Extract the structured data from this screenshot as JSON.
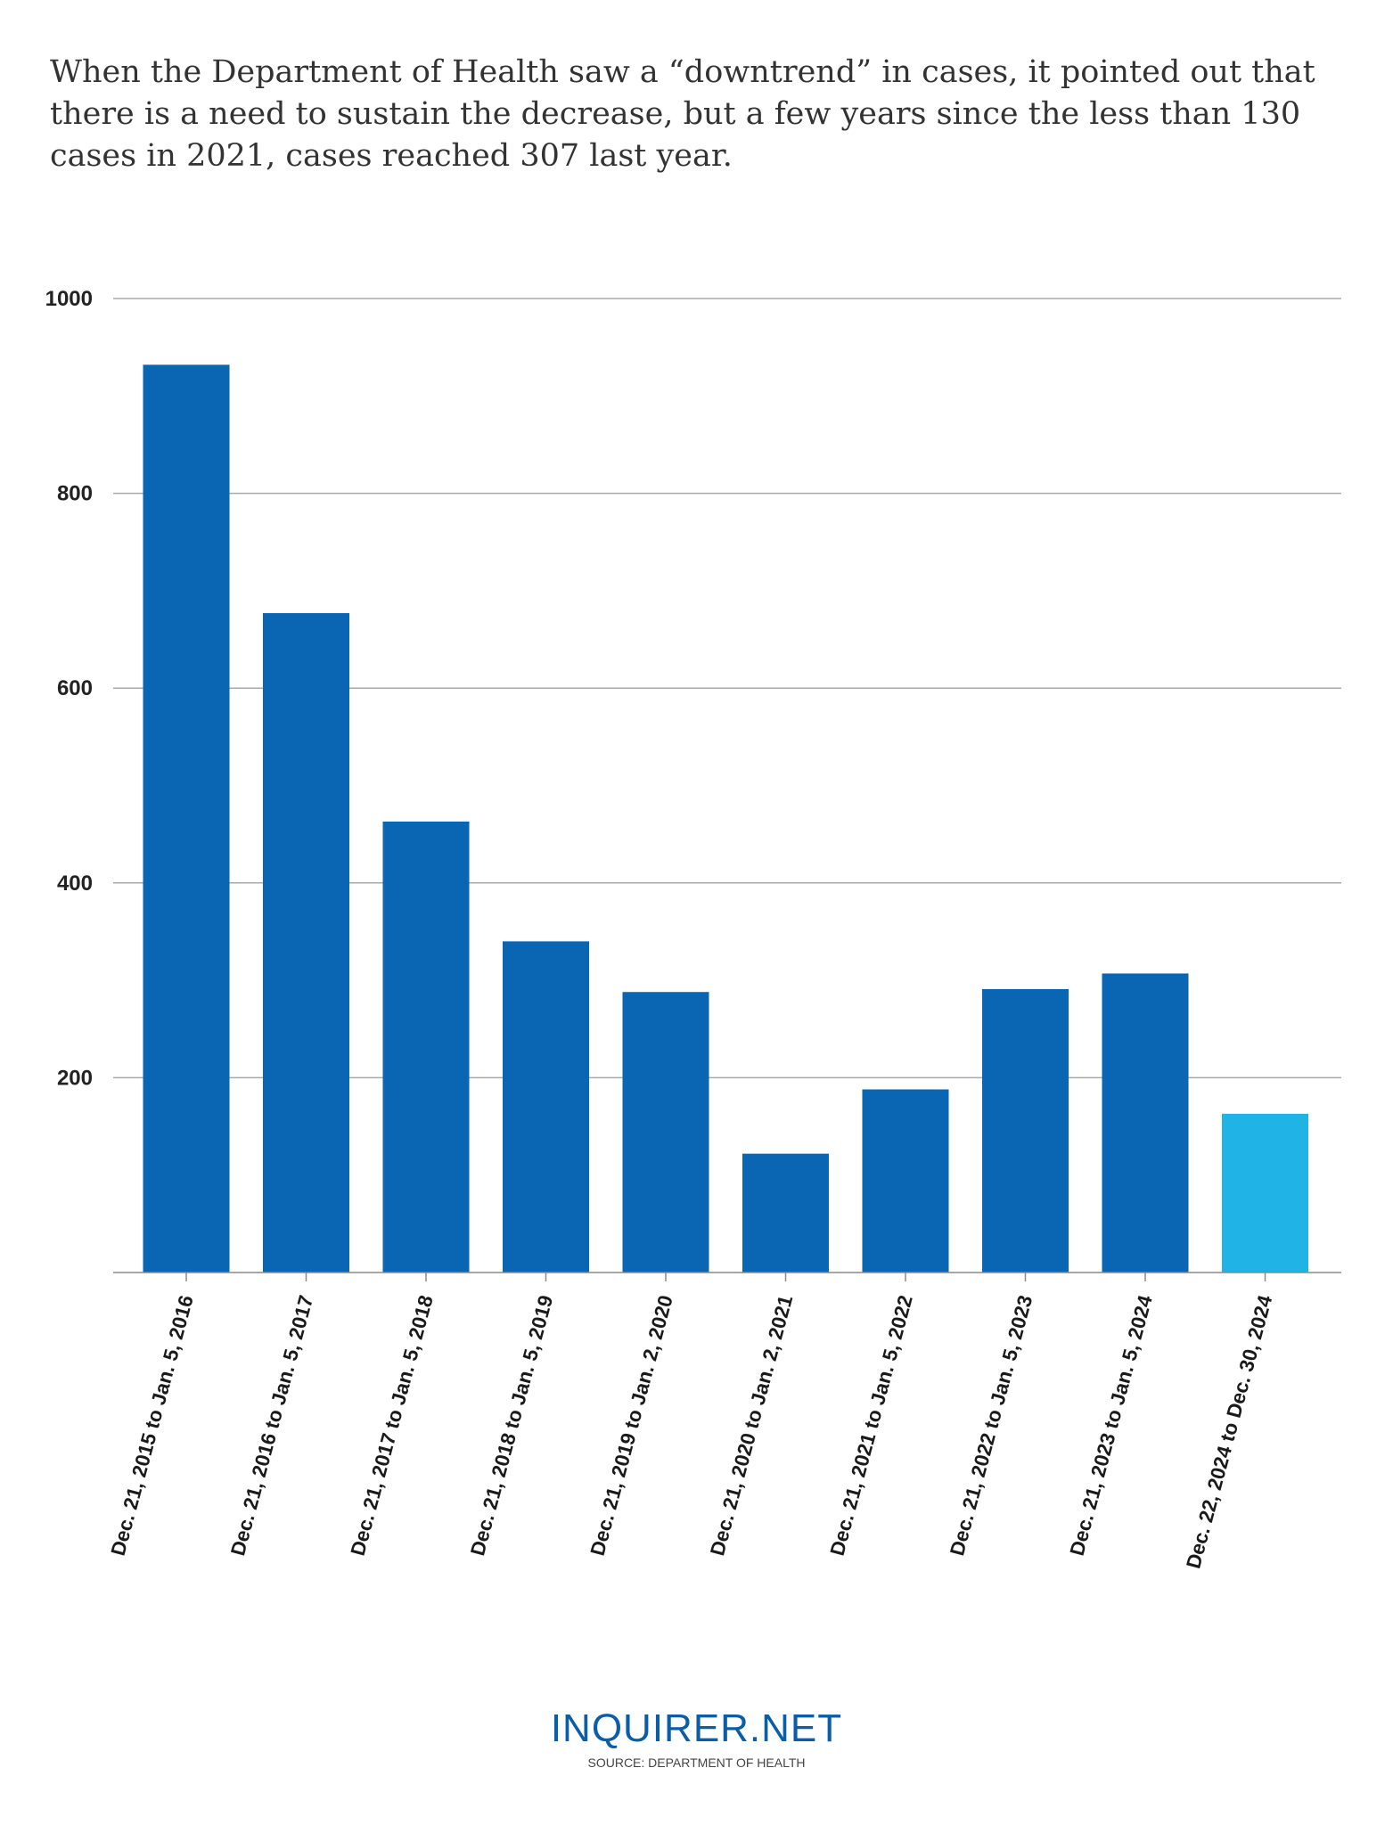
{
  "subtitle": "When the Department of Health saw a “downtrend” in cases, it pointed out that there is a need to sustain the decrease, but a few years since the less than 130 cases in 2021, cases reached 307 last year.",
  "brand": "INQUIRER.NET",
  "source": "SOURCE: DEPARTMENT OF HEALTH",
  "colors": {
    "bar": "#0a66b2",
    "highlight": "#1fb3e6",
    "grid": "#a8a8a8",
    "axis": "#8a8a8a"
  },
  "chart_data": {
    "type": "bar",
    "title": "",
    "xlabel": "",
    "ylabel": "",
    "ylim": [
      0,
      1000
    ],
    "yticks": [
      200,
      400,
      600,
      800,
      1000
    ],
    "grid": true,
    "categories": [
      "Dec. 21, 2015 to Jan. 5, 2016",
      "Dec. 21, 2016 to Jan. 5, 2017",
      "Dec. 21, 2017 to Jan. 5, 2018",
      "Dec. 21, 2018 to Jan. 5, 2019",
      "Dec. 21, 2019 to Jan. 2, 2020",
      "Dec. 21, 2020 to Jan. 2, 2021",
      "Dec. 21, 2021 to Jan. 5, 2022",
      "Dec. 21, 2022 to Jan. 5, 2023",
      "Dec. 21, 2023 to Jan. 5, 2024",
      "Dec. 22, 2024 to Dec. 30, 2024"
    ],
    "values": [
      932,
      677,
      463,
      340,
      288,
      122,
      188,
      291,
      307,
      163
    ],
    "highlight_index": 9
  }
}
